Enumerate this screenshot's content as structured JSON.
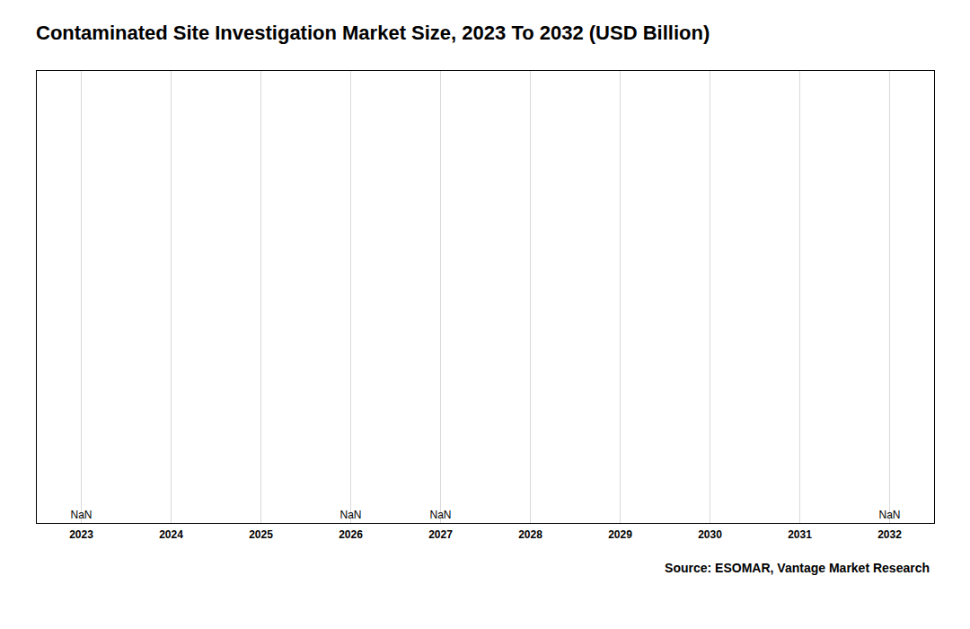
{
  "chart_data": {
    "type": "bar",
    "title": "Contaminated Site Investigation Market Size, 2023 To 2032 (USD Billion)",
    "xlim": [
      2022.5,
      2032.5
    ],
    "xticks": [
      2023,
      2024,
      2025,
      2026,
      2027,
      2028,
      2029,
      2030,
      2031,
      2032
    ],
    "ylim": [
      0,
      1
    ],
    "tick_labels": "x",
    "grid": true,
    "annotations": [
      {
        "x": 2023,
        "text": "NaN"
      },
      {
        "x": 2026,
        "text": "NaN"
      },
      {
        "x": 2027,
        "text": "NaN"
      },
      {
        "x": 2032,
        "text": "NaN"
      }
    ],
    "source": "Source: ESOMAR, Vantage Market Research"
  }
}
